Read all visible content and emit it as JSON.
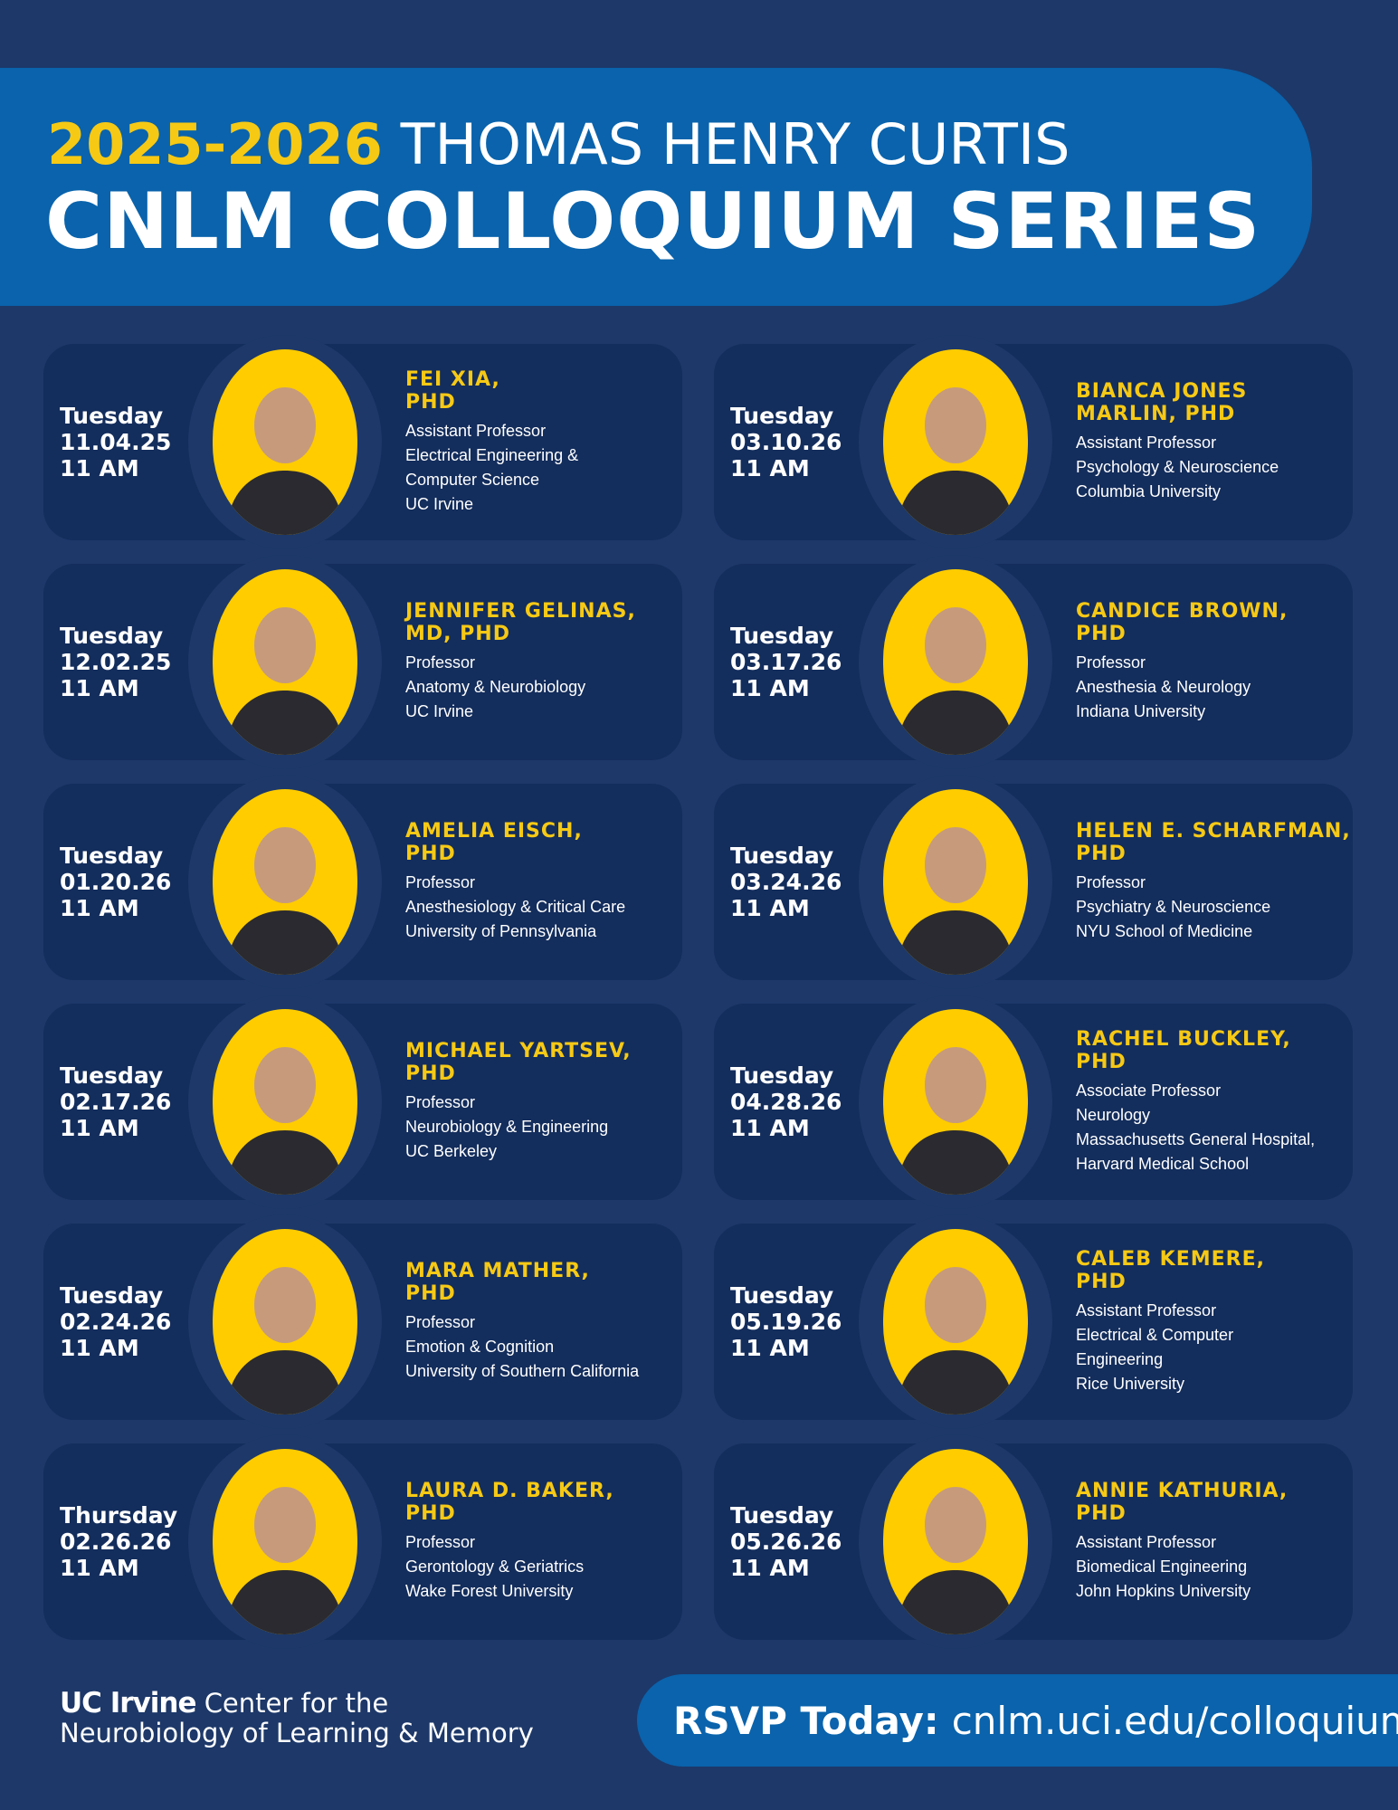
{
  "header": {
    "year": "2025-2026",
    "title": "THOMAS HENRY CURTIS",
    "subtitle": "CNLM COLLOQUIUM SERIES"
  },
  "speakers": [
    {
      "day": "Tuesday",
      "date": "11.04.25",
      "time": "11 AM",
      "name": [
        "FEI XIA,",
        "PHD"
      ],
      "details": [
        "Assistant Professor",
        "Electrical Engineering &",
        "Computer Science",
        "UC Irvine"
      ]
    },
    {
      "day": "Tuesday",
      "date": "03.10.26",
      "time": "11 AM",
      "name": [
        "BIANCA JONES",
        "MARLIN, PHD"
      ],
      "details": [
        "Assistant Professor",
        "Psychology & Neuroscience",
        "Columbia University"
      ]
    },
    {
      "day": "Tuesday",
      "date": "12.02.25",
      "time": "11 AM",
      "name": [
        "JENNIFER GELINAS,",
        "MD, PHD"
      ],
      "details": [
        "Professor",
        "Anatomy & Neurobiology",
        "UC Irvine"
      ]
    },
    {
      "day": "Tuesday",
      "date": "03.17.26",
      "time": "11 AM",
      "name": [
        "CANDICE BROWN,",
        "PHD"
      ],
      "details": [
        "Professor",
        "Anesthesia & Neurology",
        "Indiana University"
      ]
    },
    {
      "day": "Tuesday",
      "date": "01.20.26",
      "time": "11 AM",
      "name": [
        "AMELIA EISCH,",
        "PHD"
      ],
      "details": [
        "Professor",
        "Anesthesiology & Critical Care",
        "University of Pennsylvania"
      ]
    },
    {
      "day": "Tuesday",
      "date": "03.24.26",
      "time": "11 AM",
      "name": [
        "HELEN E. SCHARFMAN,",
        "PHD"
      ],
      "details": [
        "Professor",
        "Psychiatry & Neuroscience",
        "NYU School of Medicine"
      ]
    },
    {
      "day": "Tuesday",
      "date": "02.17.26",
      "time": "11 AM",
      "name": [
        "MICHAEL YARTSEV,",
        "PHD"
      ],
      "details": [
        "Professor",
        "Neurobiology & Engineering",
        "UC Berkeley"
      ]
    },
    {
      "day": "Tuesday",
      "date": "04.28.26",
      "time": "11 AM",
      "name": [
        "RACHEL BUCKLEY,",
        "PHD"
      ],
      "details": [
        "Associate Professor",
        "Neurology",
        "Massachusetts General Hospital,",
        "Harvard Medical School"
      ]
    },
    {
      "day": "Tuesday",
      "date": "02.24.26",
      "time": "11 AM",
      "name": [
        "MARA MATHER,",
        "PHD"
      ],
      "details": [
        "Professor",
        "Emotion & Cognition",
        "University of Southern California"
      ]
    },
    {
      "day": "Tuesday",
      "date": "05.19.26",
      "time": "11 AM",
      "name": [
        "CALEB KEMERE,",
        "PHD"
      ],
      "details": [
        "Assistant Professor",
        "Electrical & Computer",
        "Engineering",
        "Rice University"
      ]
    },
    {
      "day": "Thursday",
      "date": "02.26.26",
      "time": "11 AM",
      "name": [
        "LAURA D. BAKER,",
        "PHD"
      ],
      "details": [
        "Professor",
        "Gerontology & Geriatrics",
        "Wake Forest University"
      ]
    },
    {
      "day": "Tuesday",
      "date": "05.26.26",
      "time": "11 AM",
      "name": [
        "ANNIE KATHURIA,",
        "PHD"
      ],
      "details": [
        "Assistant Professor",
        "Biomedical Engineering",
        "John Hopkins University"
      ]
    }
  ],
  "footer": {
    "brand": "UC Irvine",
    "center_lines": [
      "Center for the",
      "Neurobiology of Learning & Memory"
    ],
    "rsvp_label": "RSVP Today:",
    "rsvp_url": "cnlm.uci.edu/colloquium"
  }
}
